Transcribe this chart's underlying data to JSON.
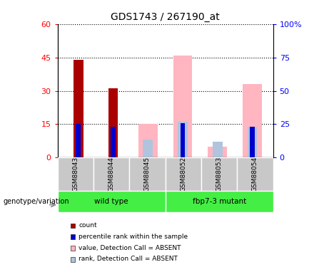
{
  "title": "GDS1743 / 267190_at",
  "samples": [
    "GSM88043",
    "GSM88044",
    "GSM88045",
    "GSM88052",
    "GSM88053",
    "GSM88054"
  ],
  "count_values": [
    44,
    31,
    0,
    0,
    0,
    0
  ],
  "percentile_values": [
    25,
    23,
    0,
    26,
    0,
    23
  ],
  "absent_value_values": [
    0,
    0,
    15,
    46,
    5,
    33
  ],
  "absent_rank_values": [
    0,
    0,
    8,
    16,
    7,
    14
  ],
  "ylim_left": [
    0,
    60
  ],
  "ylim_right": [
    0,
    100
  ],
  "yticks_left": [
    0,
    15,
    30,
    45,
    60
  ],
  "yticks_right": [
    0,
    25,
    50,
    75,
    100
  ],
  "color_count": "#AA0000",
  "color_percentile": "#0000CC",
  "color_absent_value": "#FFB6C1",
  "color_absent_rank": "#B0C4DE",
  "legend_items": [
    {
      "label": "count",
      "color": "#AA0000"
    },
    {
      "label": "percentile rank within the sample",
      "color": "#0000CC"
    },
    {
      "label": "value, Detection Call = ABSENT",
      "color": "#FFB6C1"
    },
    {
      "label": "rank, Detection Call = ABSENT",
      "color": "#B0C4DE"
    }
  ],
  "xlabel_area_color": "#C8C8C8",
  "group_area_color": "#44EE44",
  "genotype_label": "genotype/variation",
  "wild_type_label": "wild type",
  "mutant_label": "fbp7-3 mutant"
}
